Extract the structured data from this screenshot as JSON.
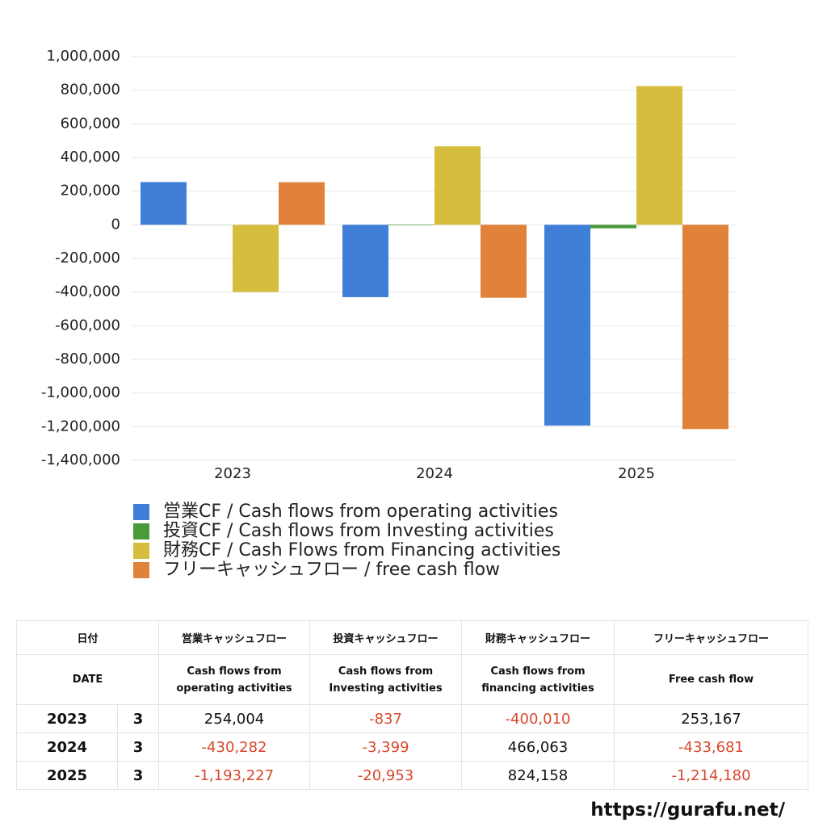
{
  "chart_data": {
    "type": "bar",
    "categories": [
      "2023",
      "2024",
      "2025"
    ],
    "series": [
      {
        "name": "営業CF / Cash flows from operating activities",
        "color": "#3f7fd8",
        "values": [
          254004,
          -430282,
          -1193227
        ]
      },
      {
        "name": "投資CF / Cash flows from Investing activities",
        "color": "#4a9a3a",
        "values": [
          -837,
          -3399,
          -20953
        ]
      },
      {
        "name": "財務CF / Cash Flows from Financing activities",
        "color": "#d6bd3e",
        "values": [
          -400010,
          466063,
          824158
        ]
      },
      {
        "name": "フリーキャッシュフロー / free cash flow",
        "color": "#e0823a",
        "values": [
          253167,
          -433681,
          -1214180
        ]
      }
    ],
    "ylim": [
      -1400000,
      1000000
    ],
    "yticks": [
      {
        "value": -1400000,
        "label": "-1,400,000"
      },
      {
        "value": -1200000,
        "label": "-1,200,000"
      },
      {
        "value": -1000000,
        "label": "-1,000,000"
      },
      {
        "value": -800000,
        "label": "-800,000"
      },
      {
        "value": -600000,
        "label": "-600,000"
      },
      {
        "value": -400000,
        "label": "-400,000"
      },
      {
        "value": -200000,
        "label": "-200,000"
      },
      0,
      {
        "value": 200000,
        "label": "200,000"
      },
      {
        "value": 400000,
        "label": "400,000"
      },
      {
        "value": 600000,
        "label": "600,000"
      },
      {
        "value": 800000,
        "label": "800,000"
      },
      {
        "value": 1000000,
        "label": "1,000,000"
      }
    ],
    "grid": true
  },
  "table": {
    "header": [
      "日付",
      "営業キャッシュフロー",
      "投資キャッシュフロー",
      "財務キャッシュフロー",
      "フリーキャッシュフロー"
    ],
    "subheader": [
      "DATE",
      "Cash flows from\noperating activities",
      "Cash flows from\nInvesting activities",
      "Cash flows from\nfinancing activities",
      "Free cash flow"
    ],
    "rows": [
      [
        "2023",
        "3",
        "254,004",
        "-837",
        "-400,010",
        "253,167"
      ],
      [
        "2024",
        "3",
        "-430,282",
        "-3,399",
        "466,063",
        "-433,681"
      ],
      [
        "2025",
        "3",
        "-1,193,227",
        "-20,953",
        "824,158",
        "-1,214,180"
      ]
    ],
    "negative_color": "#d9472b"
  },
  "footer": "https://gurafu.net/"
}
